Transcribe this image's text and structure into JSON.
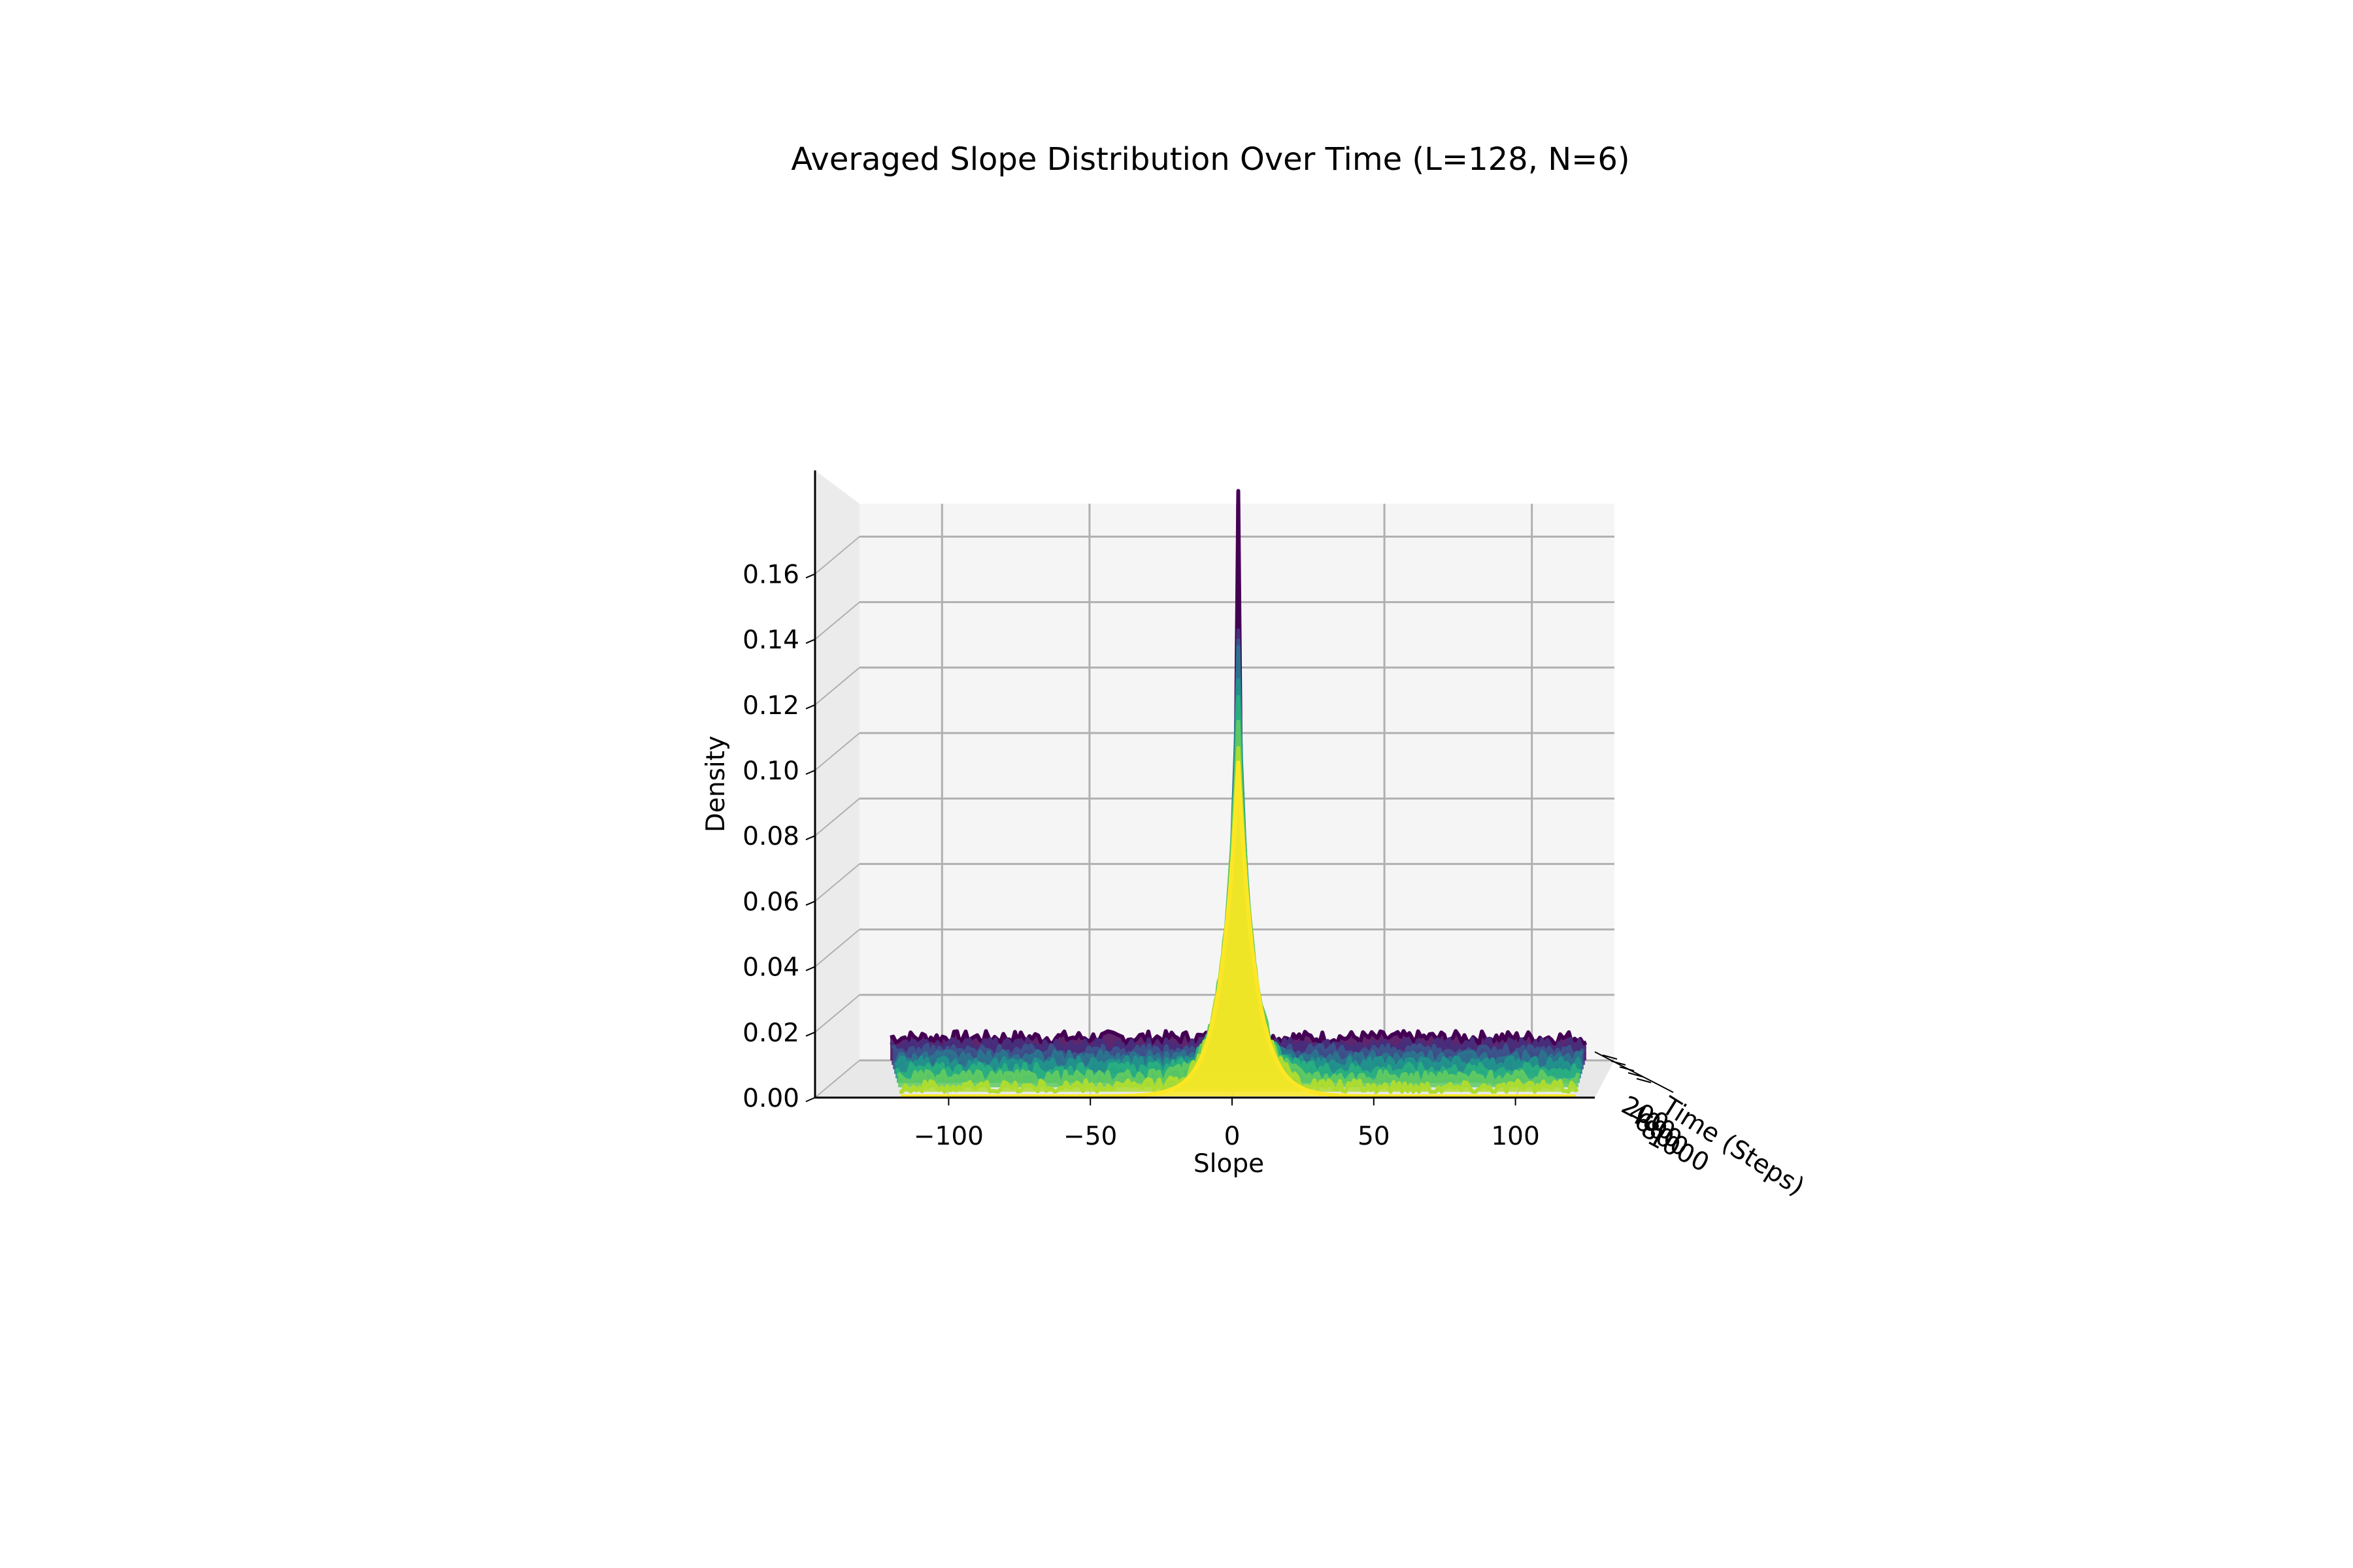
{
  "chart_data": {
    "type": "line",
    "projection": "3d-waterfall",
    "title": "Averaged Slope Distribution Over Time (L=128, N=6)",
    "xlabel": "Slope",
    "ylabel": "Time (Steps)",
    "zlabel": "Density",
    "xlim": [
      -128,
      128
    ],
    "zlim": [
      0,
      0.17
    ],
    "x_ticks": [
      -100,
      -50,
      0,
      50,
      100
    ],
    "x_tick_labels": [
      "−100",
      "−50",
      "0",
      "50",
      "100"
    ],
    "y_tick_labels": [
      "200",
      "400",
      "600",
      "800",
      "1000"
    ],
    "z_ticks": [
      0.0,
      0.02,
      0.04,
      0.06,
      0.08,
      0.1,
      0.12,
      0.14,
      0.16
    ],
    "z_tick_labels": [
      "0.00",
      "0.02",
      "0.04",
      "0.06",
      "0.08",
      "0.10",
      "0.12",
      "0.14",
      "0.16"
    ],
    "grid": true,
    "colormap": "viridis",
    "colors": [
      "#440154",
      "#472d7b",
      "#3b528b",
      "#2c728e",
      "#21918c",
      "#28ae80",
      "#5ec962",
      "#addc30",
      "#fde725"
    ],
    "series": [
      {
        "peak": 0.167,
        "width": 1.2,
        "floor": 0.007
      },
      {
        "peak": 0.128,
        "width": 2.0,
        "floor": 0.006
      },
      {
        "peak": 0.124,
        "width": 2.6,
        "floor": 0.0055
      },
      {
        "peak": 0.125,
        "width": 3.2,
        "floor": 0.005
      },
      {
        "peak": 0.118,
        "width": 3.8,
        "floor": 0.0045
      },
      {
        "peak": 0.112,
        "width": 4.4,
        "floor": 0.004
      },
      {
        "peak": 0.108,
        "width": 5.0,
        "floor": 0.003
      },
      {
        "peak": 0.104,
        "width": 5.5,
        "floor": 0.0015
      },
      {
        "peak": 0.102,
        "width": 6.0,
        "floor": 0.0
      }
    ]
  }
}
